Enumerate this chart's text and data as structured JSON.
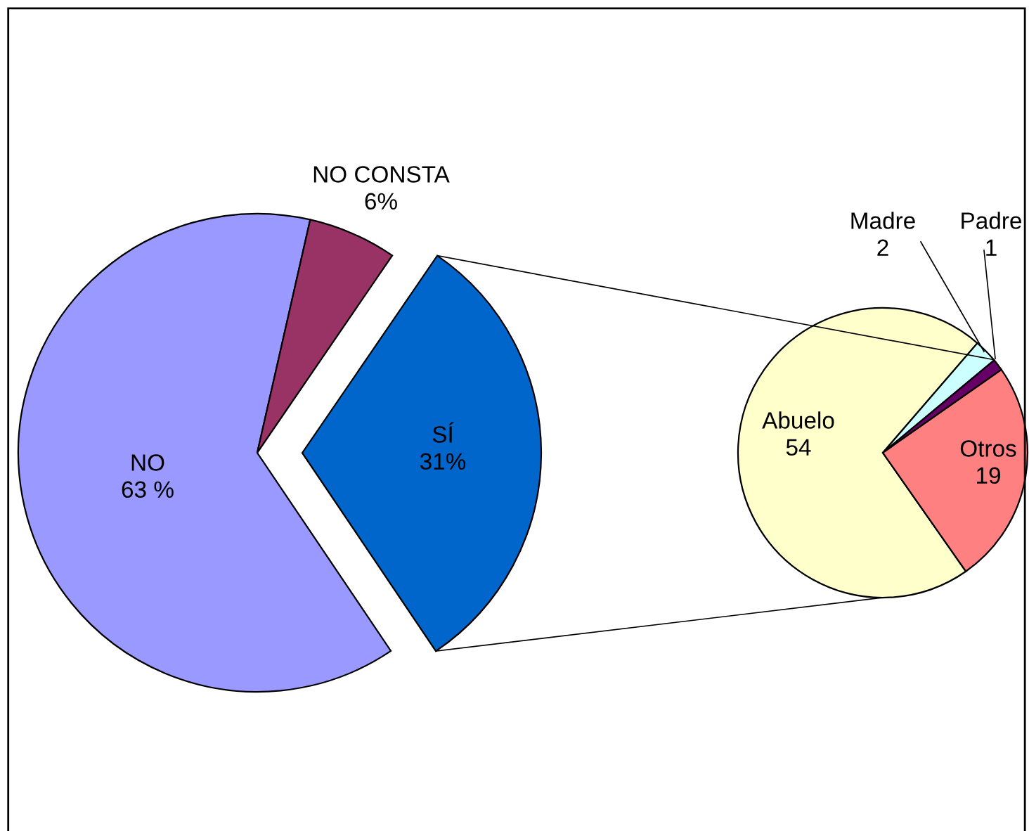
{
  "chart_data": [
    {
      "type": "pie",
      "categories": [
        "NO",
        "NO CONSTA",
        "SÍ"
      ],
      "values": [
        63,
        6,
        31
      ],
      "colors": [
        "#9999ff",
        "#993366",
        "#0066cc"
      ],
      "value_labels": [
        "63 %",
        "6%",
        "31%"
      ]
    },
    {
      "type": "pie",
      "categories": [
        "Abuelo",
        "Madre",
        "Padre",
        "Otros"
      ],
      "values": [
        54,
        2,
        1,
        19
      ],
      "colors": [
        "#ffffcc",
        "#ccffff",
        "#660066",
        "#ff8080"
      ],
      "data_labels": true
    }
  ]
}
